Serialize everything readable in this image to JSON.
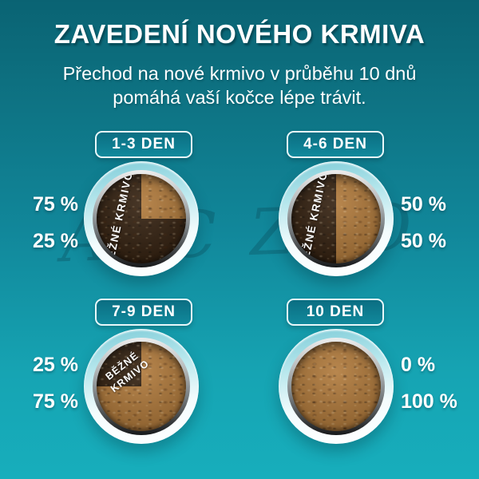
{
  "header": {
    "title": "ZAVEDENÍ NOVÉHO KRMIVA",
    "subtitle_line1": "Přechod na nové krmivo v průběhu 10 dnů",
    "subtitle_line2": "pomáhá vaší kočce lépe trávit."
  },
  "watermark": "ABC ZOO",
  "bowl_text": "BĚŽNÉ KRMIVO",
  "bowl_text_line1": "BĚŽNÉ",
  "bowl_text_line2": "KRMIVO",
  "panels": [
    {
      "label": "1-3 DEN",
      "old_pct": "75 %",
      "new_pct": "25 %"
    },
    {
      "label": "4-6 DEN",
      "old_pct": "50 %",
      "new_pct": "50 %"
    },
    {
      "label": "7-9 DEN",
      "old_pct": "25 %",
      "new_pct": "75 %"
    },
    {
      "label": "10 DEN",
      "old_pct": "0 %",
      "new_pct": "100 %"
    }
  ],
  "colors": {
    "background_top": "#0a6373",
    "background_bottom": "#17aebc",
    "old_food_brown": "#33200f",
    "new_food_tan": "#b0793a",
    "badge_fill": "#0e7a8e",
    "text": "#ffffff"
  }
}
